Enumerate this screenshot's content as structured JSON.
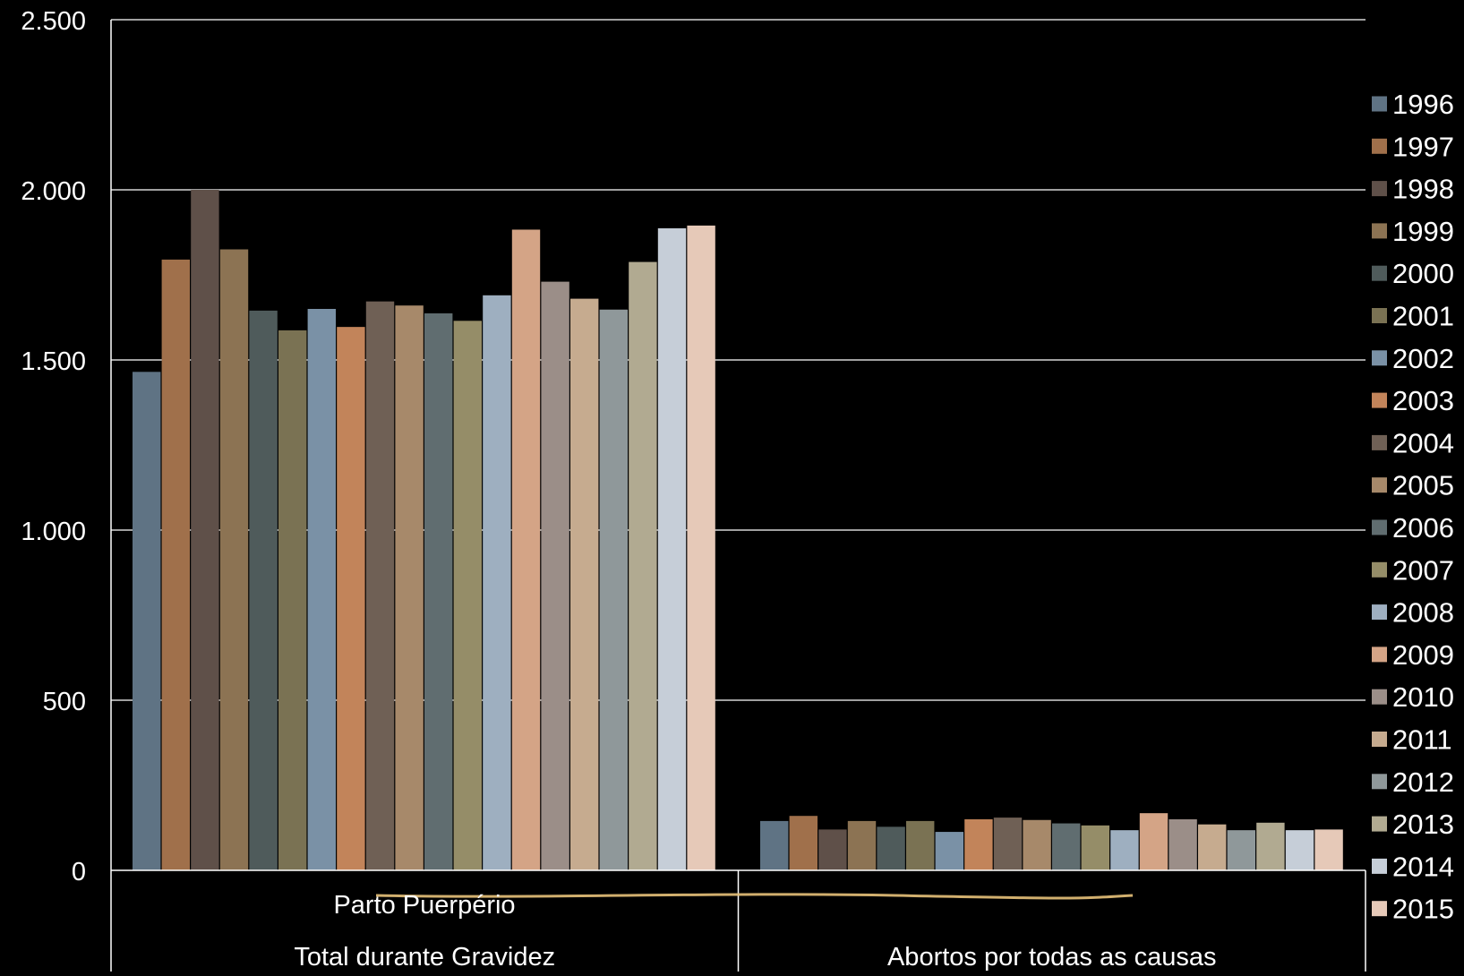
{
  "chart_data": {
    "type": "bar",
    "title": "",
    "xlabel": "",
    "ylabel": "",
    "ylim": [
      0,
      2500
    ],
    "yticks": [
      0,
      500,
      1000,
      1500,
      2000,
      2500
    ],
    "ytick_labels": [
      "0",
      "500",
      "1.000",
      "1.500",
      "2.000",
      "2.500"
    ],
    "grid": true,
    "legend_position": "right",
    "categories": [
      "Total durante Gravidez",
      "Abortos por todas as causas"
    ],
    "subcategory_labels": [
      "Parto  Puerpério"
    ],
    "series": [
      {
        "name": "1996",
        "color": "#5f7384",
        "values": [
          1465,
          145
        ]
      },
      {
        "name": "1997",
        "color": "#a0704b",
        "values": [
          1795,
          160
        ]
      },
      {
        "name": "1998",
        "color": "#5f5049",
        "values": [
          2000,
          120
        ]
      },
      {
        "name": "1999",
        "color": "#8c7353",
        "values": [
          1825,
          145
        ]
      },
      {
        "name": "2000",
        "color": "#4f5b5b",
        "values": [
          1645,
          128
        ]
      },
      {
        "name": "2001",
        "color": "#7a7253",
        "values": [
          1587,
          145
        ]
      },
      {
        "name": "2002",
        "color": "#7a91a6",
        "values": [
          1650,
          113
        ]
      },
      {
        "name": "2003",
        "color": "#c2845a",
        "values": [
          1597,
          150
        ]
      },
      {
        "name": "2004",
        "color": "#6f6055",
        "values": [
          1672,
          155
        ]
      },
      {
        "name": "2005",
        "color": "#a7896a",
        "values": [
          1660,
          148
        ]
      },
      {
        "name": "2006",
        "color": "#606d70",
        "values": [
          1637,
          138
        ]
      },
      {
        "name": "2007",
        "color": "#958d68",
        "values": [
          1615,
          132
        ]
      },
      {
        "name": "2008",
        "color": "#9eafc0",
        "values": [
          1690,
          118
        ]
      },
      {
        "name": "2009",
        "color": "#d4a486",
        "values": [
          1883,
          168
        ]
      },
      {
        "name": "2010",
        "color": "#9b8e88",
        "values": [
          1730,
          150
        ]
      },
      {
        "name": "2011",
        "color": "#c6ab8f",
        "values": [
          1680,
          135
        ]
      },
      {
        "name": "2012",
        "color": "#8f989a",
        "values": [
          1648,
          118
        ]
      },
      {
        "name": "2013",
        "color": "#b1aa91",
        "values": [
          1788,
          140
        ]
      },
      {
        "name": "2014",
        "color": "#c6ced8",
        "values": [
          1887,
          118
        ]
      },
      {
        "name": "2015",
        "color": "#e6c9b8",
        "values": [
          1895,
          120
        ]
      }
    ]
  }
}
